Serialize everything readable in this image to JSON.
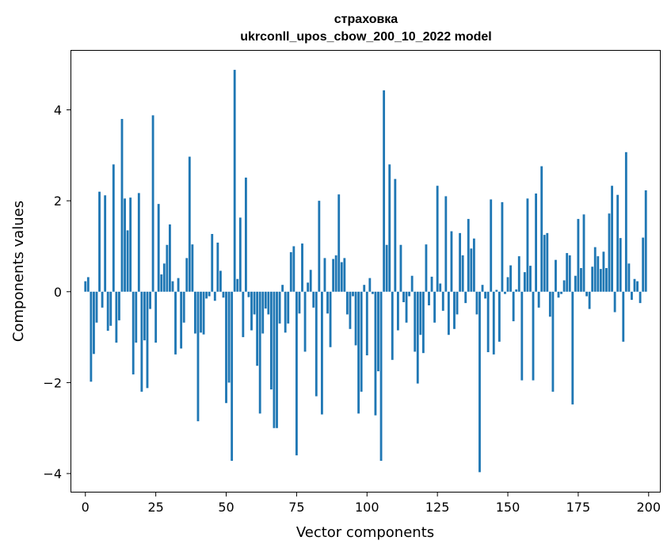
{
  "chart_data": {
    "type": "bar",
    "title_line1": "страховка",
    "title_line2": "ukrconll_upos_cbow_200_10_2022 model",
    "xlabel": "Vector components",
    "ylabel": "Components values",
    "xlim": [
      -5,
      204
    ],
    "ylim": [
      -4.4,
      5.3
    ],
    "xticks": [
      0,
      25,
      50,
      75,
      100,
      125,
      150,
      175,
      200
    ],
    "yticks": [
      -4,
      -2,
      0,
      2,
      4
    ],
    "xtick_labels": [
      "0",
      "25",
      "50",
      "75",
      "100",
      "125",
      "150",
      "175",
      "200"
    ],
    "ytick_labels": [
      "−4",
      "−2",
      "0",
      "2",
      "4"
    ],
    "bar_color": "#1f77b4",
    "values": [
      0.23,
      0.32,
      -1.98,
      -1.37,
      -0.68,
      2.2,
      -0.35,
      2.12,
      -0.86,
      -0.75,
      2.8,
      -1.12,
      -0.63,
      3.8,
      2.05,
      1.35,
      2.07,
      -1.82,
      -1.12,
      2.17,
      -2.2,
      -1.07,
      -2.12,
      -0.38,
      3.88,
      -1.12,
      1.93,
      0.38,
      0.62,
      1.03,
      1.48,
      0.23,
      -1.38,
      0.3,
      -1.25,
      -0.68,
      0.74,
      2.97,
      1.04,
      -0.92,
      -2.85,
      -0.9,
      -0.94,
      -0.15,
      -0.1,
      1.27,
      -0.2,
      1.08,
      0.46,
      -0.13,
      -2.45,
      -2.0,
      -3.72,
      4.88,
      0.28,
      1.63,
      -1.0,
      2.51,
      -0.12,
      -0.85,
      -0.5,
      -1.63,
      -2.68,
      -0.92,
      -0.37,
      -0.5,
      -2.15,
      -3.0,
      -3.0,
      -0.7,
      0.15,
      -0.9,
      -0.7,
      0.87,
      1.0,
      -3.6,
      -0.48,
      1.06,
      -1.32,
      0.2,
      0.48,
      -0.35,
      -2.3,
      2.0,
      -2.7,
      0.74,
      -0.48,
      -1.22,
      0.72,
      0.8,
      2.14,
      0.65,
      0.74,
      -0.5,
      -0.82,
      -0.1,
      -1.18,
      -2.68,
      -2.2,
      0.15,
      -1.4,
      0.3,
      -0.05,
      -2.72,
      -1.75,
      -3.72,
      4.43,
      1.03,
      2.8,
      -1.5,
      2.48,
      -0.85,
      1.03,
      -0.23,
      -0.68,
      -0.1,
      0.35,
      -1.32,
      -2.02,
      -0.95,
      -1.35,
      1.04,
      -0.3,
      0.33,
      -0.68,
      2.33,
      0.18,
      -0.42,
      2.1,
      -0.95,
      1.33,
      -0.82,
      -0.5,
      1.29,
      0.8,
      -0.25,
      1.6,
      0.95,
      1.17,
      -0.5,
      -3.97,
      0.15,
      -0.15,
      -1.33,
      2.03,
      -1.38,
      0.04,
      -1.1,
      1.97,
      -0.05,
      0.32,
      0.58,
      -0.65,
      0.05,
      0.78,
      -1.95,
      0.43,
      2.05,
      0.57,
      -1.95,
      2.16,
      -0.35,
      2.76,
      1.25,
      1.29,
      -0.55,
      -2.2,
      0.7,
      -0.13,
      -0.05,
      0.25,
      0.85,
      0.8,
      -2.48,
      0.35,
      1.6,
      0.52,
      1.7,
      -0.1,
      -0.38,
      0.55,
      0.98,
      0.78,
      0.5,
      0.88,
      0.52,
      1.72,
      2.33,
      -0.45,
      2.13,
      1.18,
      -1.1,
      3.07,
      0.62,
      -0.18,
      0.28,
      0.23,
      -0.25,
      1.19,
      2.23
    ]
  }
}
